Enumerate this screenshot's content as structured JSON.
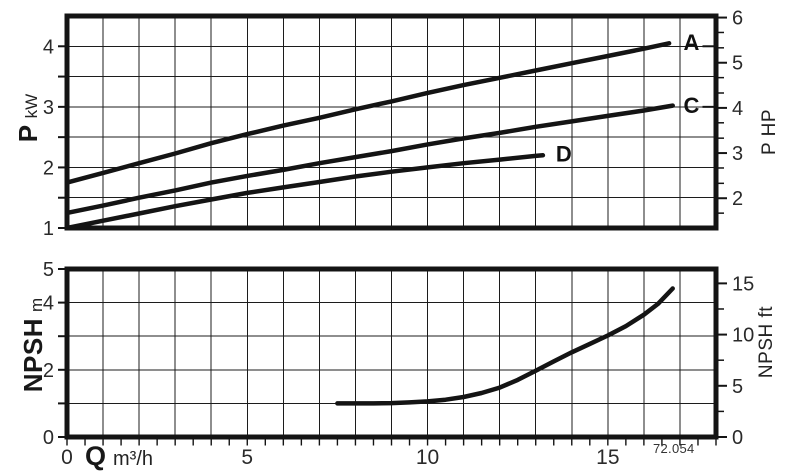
{
  "meta": {
    "code": "72.054",
    "ink": "#141414",
    "grid_color": "#1c1c1c",
    "text_color": "#2a2a2a",
    "bg": "#ffffff"
  },
  "axis_titles": {
    "power_left": {
      "main": "P",
      "unit": "kW"
    },
    "power_right": {
      "text": "P HP"
    },
    "npsh_left": {
      "main": "NPSH",
      "unit": "m"
    },
    "npsh_right": {
      "text": "NPSH ft"
    },
    "flow": {
      "main": "Q",
      "unit": "m³/h"
    }
  },
  "chart_data": [
    {
      "id": "power",
      "type": "line",
      "xlabel": "Q m³/h",
      "ylabel": "P kW",
      "ylabel_right": "P HP",
      "xlim": [
        0,
        18
      ],
      "ylim": [
        1,
        4.5
      ],
      "x_grid_step": 1,
      "y_grid_step": 0.5,
      "grid": true,
      "left_ticks": [
        {
          "v": 1,
          "label": "1"
        },
        {
          "v": 1.5
        },
        {
          "v": 2,
          "label": "2"
        },
        {
          "v": 2.5
        },
        {
          "v": 3,
          "label": "3"
        },
        {
          "v": 3.5
        },
        {
          "v": 4,
          "label": "4"
        }
      ],
      "right_axis": {
        "unit": "HP",
        "factor": 0.7457,
        "major": [
          {
            "v": 2,
            "label": "2"
          },
          {
            "v": 3,
            "label": "3"
          },
          {
            "v": 4,
            "label": "4"
          },
          {
            "v": 5,
            "label": "5"
          },
          {
            "v": 6,
            "label": "6"
          }
        ],
        "minor": [
          1.67,
          2.33,
          2.67,
          3.33,
          3.67,
          4.33,
          4.67,
          5.33,
          5.67
        ]
      },
      "series": [
        {
          "name": "A",
          "label": "A",
          "label_at": [
            17.32,
            4.07
          ],
          "leader_y": 4.0,
          "points": [
            [
              0,
              1.75
            ],
            [
              1,
              1.91
            ],
            [
              2,
              2.07
            ],
            [
              3,
              2.23
            ],
            [
              4,
              2.4
            ],
            [
              5,
              2.55
            ],
            [
              6,
              2.69
            ],
            [
              7,
              2.82
            ],
            [
              8,
              2.96
            ],
            [
              9,
              3.09
            ],
            [
              10,
              3.23
            ],
            [
              11,
              3.36
            ],
            [
              12,
              3.48
            ],
            [
              13,
              3.6
            ],
            [
              14,
              3.72
            ],
            [
              15,
              3.84
            ],
            [
              16,
              3.96
            ],
            [
              16.7,
              4.05
            ]
          ]
        },
        {
          "name": "C",
          "label": "C",
          "label_at": [
            17.32,
            3.03
          ],
          "leader_y": 3.0,
          "points": [
            [
              0,
              1.25
            ],
            [
              1,
              1.37
            ],
            [
              2,
              1.5
            ],
            [
              3,
              1.62
            ],
            [
              4,
              1.75
            ],
            [
              5,
              1.86
            ],
            [
              6,
              1.96
            ],
            [
              7,
              2.07
            ],
            [
              8,
              2.17
            ],
            [
              9,
              2.27
            ],
            [
              10,
              2.38
            ],
            [
              11,
              2.48
            ],
            [
              12,
              2.57
            ],
            [
              13,
              2.67
            ],
            [
              14,
              2.76
            ],
            [
              15,
              2.85
            ],
            [
              16,
              2.94
            ],
            [
              16.8,
              3.02
            ]
          ]
        },
        {
          "name": "D",
          "label": "D",
          "label_at": [
            13.78,
            2.23
          ],
          "points": [
            [
              0,
              1.0
            ],
            [
              1,
              1.12
            ],
            [
              2,
              1.24
            ],
            [
              3,
              1.36
            ],
            [
              4,
              1.47
            ],
            [
              5,
              1.58
            ],
            [
              6,
              1.67
            ],
            [
              7,
              1.76
            ],
            [
              8,
              1.85
            ],
            [
              9,
              1.93
            ],
            [
              10,
              2.0
            ],
            [
              11,
              2.07
            ],
            [
              12,
              2.13
            ],
            [
              13,
              2.19
            ],
            [
              13.2,
              2.2
            ]
          ]
        }
      ]
    },
    {
      "id": "npsh",
      "type": "line",
      "xlabel": "Q m³/h",
      "ylabel": "NPSH m",
      "ylabel_right": "NPSH ft",
      "xlim": [
        0,
        18
      ],
      "ylim": [
        0,
        5
      ],
      "x_grid_step": 1,
      "y_grid_step": 1,
      "grid": true,
      "left_ticks": [
        {
          "v": 0,
          "label": "0"
        },
        {
          "v": 1
        },
        {
          "v": 2,
          "label": "2"
        },
        {
          "v": 3
        },
        {
          "v": 4,
          "label": "4"
        },
        {
          "v": 5,
          "label": "5"
        }
      ],
      "right_axis": {
        "unit": "ft",
        "factor": 0.3048,
        "major": [
          {
            "v": 0,
            "label": "0"
          },
          {
            "v": 5,
            "label": "5"
          },
          {
            "v": 10,
            "label": "10"
          },
          {
            "v": 15,
            "label": "15"
          }
        ],
        "minor": [
          2.5,
          7.5,
          12.5
        ]
      },
      "bottom_ticks": {
        "from": 0,
        "to": 18,
        "step": 0.5,
        "labels": [
          {
            "v": 0,
            "label": "0"
          },
          {
            "v": 5,
            "label": "5"
          },
          {
            "v": 10,
            "label": "10"
          },
          {
            "v": 15,
            "label": "15"
          }
        ]
      },
      "series": [
        {
          "name": "NPSH",
          "points": [
            [
              7.5,
              1.0
            ],
            [
              8,
              1.0
            ],
            [
              8.5,
              1.0
            ],
            [
              9,
              1.01
            ],
            [
              9.5,
              1.03
            ],
            [
              10,
              1.06
            ],
            [
              10.5,
              1.11
            ],
            [
              11,
              1.19
            ],
            [
              11.5,
              1.31
            ],
            [
              12,
              1.47
            ],
            [
              12.5,
              1.7
            ],
            [
              13,
              1.97
            ],
            [
              13.5,
              2.25
            ],
            [
              14,
              2.52
            ],
            [
              14.5,
              2.77
            ],
            [
              15,
              3.02
            ],
            [
              15.5,
              3.3
            ],
            [
              16,
              3.64
            ],
            [
              16.4,
              3.97
            ],
            [
              16.8,
              4.42
            ]
          ]
        }
      ]
    }
  ]
}
